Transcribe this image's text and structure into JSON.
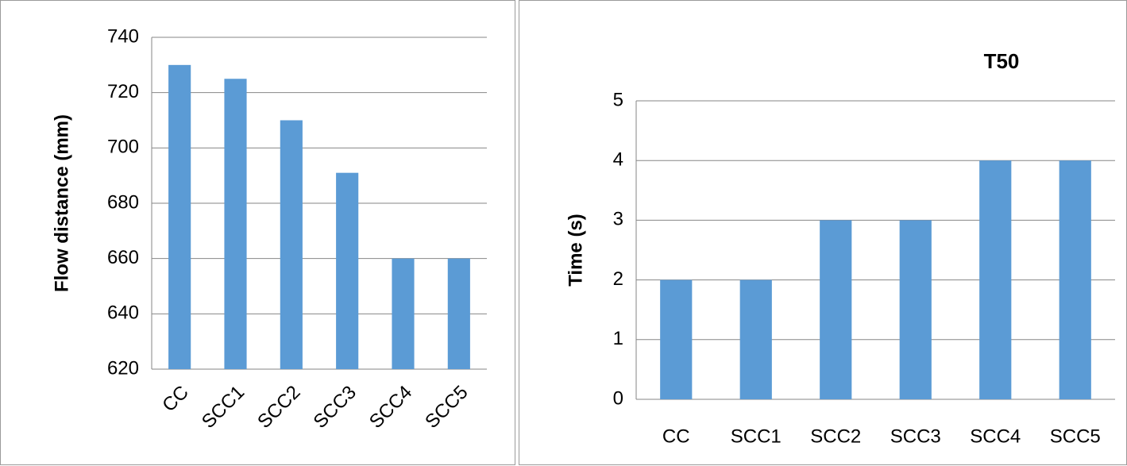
{
  "chart_data": [
    {
      "type": "bar",
      "title": "",
      "xlabel": "",
      "ylabel": "Flow distance (mm)",
      "categories": [
        "CC",
        "SCC1",
        "SCC2",
        "SCC3",
        "SCC4",
        "SCC5"
      ],
      "values": [
        730,
        725,
        710,
        691,
        660,
        660
      ],
      "ylim": [
        620,
        740
      ],
      "yticks": [
        620,
        640,
        660,
        680,
        700,
        720,
        740
      ],
      "grid": true,
      "bar_color": "#5b9bd5",
      "x_tick_rotation": "diagonal"
    },
    {
      "type": "bar",
      "title": "T50",
      "xlabel": "",
      "ylabel": "Time (s)",
      "categories": [
        "CC",
        "SCC1",
        "SCC2",
        "SCC3",
        "SCC4",
        "SCC5"
      ],
      "values": [
        2,
        2,
        3,
        3,
        4,
        4
      ],
      "ylim": [
        0,
        5
      ],
      "yticks": [
        0,
        1,
        2,
        3,
        4,
        5
      ],
      "grid": true,
      "bar_color": "#5b9bd5",
      "x_tick_rotation": "horizontal"
    }
  ]
}
